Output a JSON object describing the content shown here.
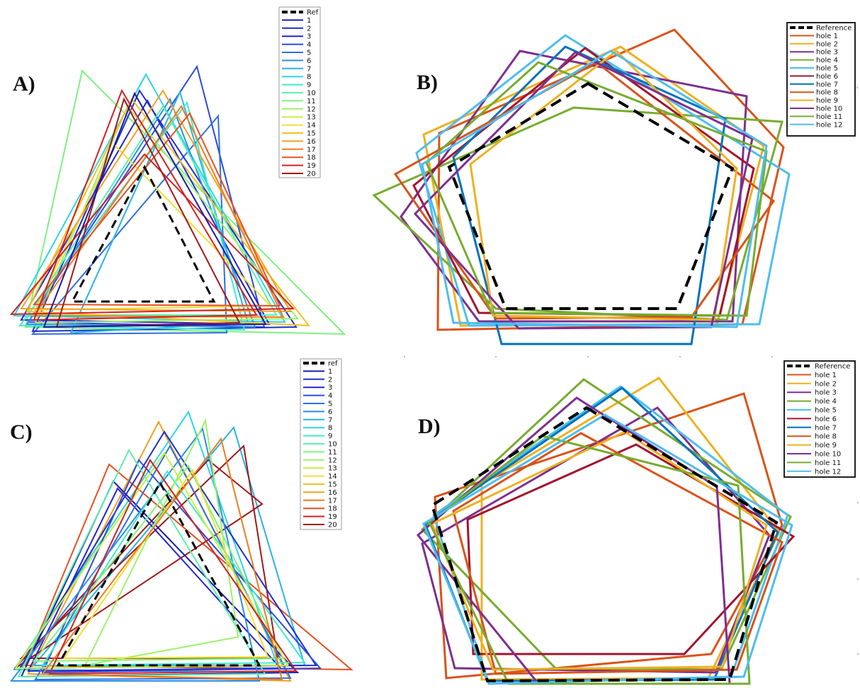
{
  "panels": [
    {
      "label": "A)",
      "legend": [
        "Ref",
        "1",
        "2",
        "3",
        "4",
        "5",
        "6",
        "7",
        "8",
        "9",
        "10",
        "11",
        "12",
        "13",
        "14",
        "15",
        "16",
        "17",
        "18",
        "19",
        "20"
      ],
      "colors": [
        "#000000",
        "#1a1aa8",
        "#1f2fc8",
        "#2323d8",
        "#2a4ae0",
        "#2f6fe0",
        "#2b8fe6",
        "#27b3ea",
        "#2bd6e8",
        "#3fe8d0",
        "#5cf0b0",
        "#7cf27f",
        "#9cf26a",
        "#c8f040",
        "#f0e030",
        "#f5c020",
        "#f5a020",
        "#f07a20",
        "#e85020",
        "#d42020",
        "#a01818"
      ]
    },
    {
      "label": "B)",
      "legend": [
        "Reference",
        "hole 1",
        "hole 2",
        "hole 3",
        "hole 4",
        "hole 5",
        "hole 6",
        "hole 7",
        "hole 8",
        "hole 9",
        "hole 10",
        "hole 11",
        "hole 12"
      ],
      "colors": [
        "#000000",
        "#d95319",
        "#edb120",
        "#7e2f8e",
        "#77ac30",
        "#4dbeee",
        "#a2142f",
        "#0072bd",
        "#d95319",
        "#edb120",
        "#7e2f8e",
        "#77ac30",
        "#4dbeee"
      ]
    },
    {
      "label": "C)",
      "legend": [
        "ref",
        "1",
        "2",
        "3",
        "4",
        "5",
        "6",
        "7",
        "8",
        "9",
        "10",
        "11",
        "12",
        "13",
        "14",
        "15",
        "16",
        "17",
        "18",
        "19",
        "20"
      ],
      "colors": [
        "#000000",
        "#1a1aa8",
        "#1f2fc8",
        "#2323d8",
        "#2a4ae0",
        "#2f6fe0",
        "#2b8fe6",
        "#27b3ea",
        "#2bd6e8",
        "#3fe8d0",
        "#5cf0b0",
        "#7cf27f",
        "#9cf26a",
        "#c8f040",
        "#f0e030",
        "#f5c020",
        "#f5a020",
        "#f07a20",
        "#e85020",
        "#d42020",
        "#a01818"
      ]
    },
    {
      "label": "D)",
      "legend": [
        "Reference",
        "hole 1",
        "hole 2",
        "hole 3",
        "hole 4",
        "hole 5",
        "hole 6",
        "hole 7",
        "hole 8",
        "hole 9",
        "hole 10",
        "hole 11",
        "hole 12"
      ],
      "colors": [
        "#000000",
        "#d95319",
        "#edb120",
        "#7e2f8e",
        "#77ac30",
        "#4dbeee",
        "#a2142f",
        "#0072bd",
        "#d95319",
        "#edb120",
        "#7e2f8e",
        "#77ac30",
        "#4dbeee"
      ]
    }
  ]
}
